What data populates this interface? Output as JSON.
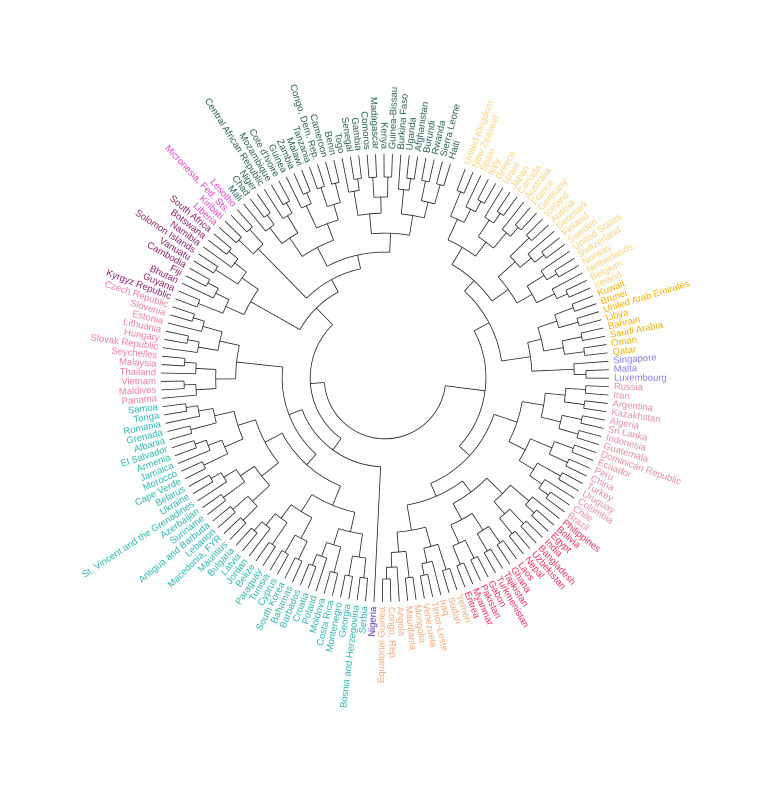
{
  "chart_data": {
    "type": "dendrogram",
    "groups": [
      {
        "color": "#2a5f55",
        "leaves": [
          "Haiti",
          "Sierra Leone",
          "Rwanda",
          "Burundi",
          "Afghanistan",
          "Uganda",
          "Burkina Faso",
          "Guinea-Bissau",
          "Kenya",
          "Madagascar",
          "Comoros",
          "Gambia",
          "Senegal",
          "Togo",
          "Benin",
          "Cameroon",
          "Congo, Dem. Rep.",
          "Tanzania",
          "Malawi",
          "Zambia",
          "Guinea",
          "Cote d'Ivoire",
          "Mozambique",
          "Central African Republic",
          "Niger",
          "Chad",
          "Mali"
        ]
      },
      {
        "color": "#e040c8",
        "leaves": [
          "Lesotho",
          "Micronesia, Fed. Sts.",
          "Kiribati",
          "Liberia"
        ]
      },
      {
        "color": "#8b1f6e",
        "leaves": [
          "South Africa",
          "Botswana",
          "Namibia",
          "Solomon Islands",
          "Vanuatu",
          "Cambodia",
          "Fiji",
          "Bhutan",
          "Guyana",
          "Kyrgyz Republic"
        ]
      },
      {
        "color": "#f07ca0",
        "leaves": [
          "Czech Republic",
          "Slovenia",
          "Estonia",
          "Lithuania",
          "Hungary",
          "Slovak Republic",
          "Seychelles",
          "Malaysia",
          "Thailand",
          "Vietnam",
          "Maldives",
          "Panama"
        ]
      },
      {
        "color": "#2bb5b0",
        "leaves": [
          "Samoa",
          "Tonga",
          "Romania",
          "Grenada",
          "Albania",
          "El Salvador",
          "Armenia",
          "Jamaica",
          "Morocco",
          "Cape Verde",
          "Belarus",
          "Ukraine",
          "St. Vincent and the Grenadines",
          "Azerbaijan",
          "Suriname",
          "Antigua and Barbuda",
          "Lebanon",
          "Macedonia, FYR",
          "Mauritius",
          "Bulgaria",
          "Latvia",
          "Jordan",
          "Belize",
          "Paraguay",
          "Tunisia",
          "Cyprus",
          "South Korea",
          "Bahamas",
          "Barbados",
          "Croatia",
          "Poland",
          "Moldova",
          "Costa Rica",
          "Montenegro",
          "Georgia",
          "Bosnia and Herzegovina",
          "Serbia"
        ]
      },
      {
        "color": "#5b2aa8",
        "leaves": [
          "Nigeria"
        ]
      },
      {
        "color": "#f5a77a",
        "leaves": [
          "Equatorial Guinea",
          "Congo, Rep.",
          "Angola",
          "Mauritania",
          "Mongolia",
          "Venezuela",
          "Timor-Leste",
          "Iraq",
          "Sudan",
          "Yemen"
        ]
      },
      {
        "color": "#e8305f",
        "leaves": [
          "Eritrea",
          "Myanmar",
          "Pakistan",
          "Gabon",
          "Turkmenistan",
          "Tajikistan",
          "Ghana",
          "Laos",
          "Nepal",
          "Uzbekistan",
          "Bangladesh",
          "India",
          "Egypt",
          "Bolivia",
          "Philippines"
        ]
      },
      {
        "color": "#e58e9e",
        "leaves": [
          "Brazil",
          "Chile",
          "Colombia",
          "Uruguay",
          "Turkey",
          "China",
          "Peru",
          "Ecuador",
          "Dominican Republic",
          "Guatemala",
          "Indonesia",
          "Sri Lanka",
          "Algeria",
          "Kazakhstan",
          "Argentina",
          "Iran",
          "Russia"
        ]
      },
      {
        "color": "#8c7be8",
        "leaves": [
          "Luxembourg",
          "Malta",
          "Singapore"
        ]
      },
      {
        "color": "#f0b000",
        "leaves": [
          "Qatar",
          "Oman",
          "Saudi Arabia",
          "Bahrain",
          "Libya",
          "United Arab Emirates",
          "Brunei",
          "Kuwait"
        ]
      },
      {
        "color": "#fcd27a",
        "leaves": [
          "Ireland",
          "Belgium",
          "Netherlands",
          "Norway",
          "Switzerland",
          "United States",
          "Sweden",
          "Finland",
          "Denmark",
          "Austria",
          "Iceland",
          "Germany",
          "France",
          "Australia",
          "Canada",
          "Japan",
          "Israel",
          "Greece",
          "Italy",
          "Spain",
          "New Zealand",
          "United Kingdom"
        ]
      }
    ]
  }
}
